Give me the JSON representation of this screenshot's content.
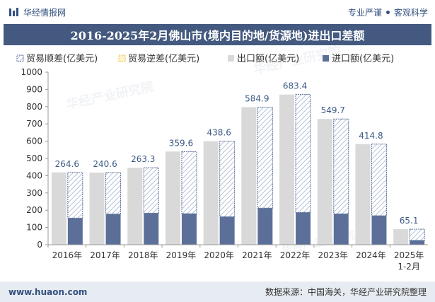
{
  "header": {
    "brand": "华经情报网",
    "tag1": "专业严谨",
    "tag2": "客观科学"
  },
  "title": "2016-2025年2月佛山市(境内目的地/货源地)进出口差额",
  "footer": {
    "site": "www.huaon.com",
    "source": "数据来源：中国海关，华经产业研究院整理"
  },
  "watermark": "华经产业研究院",
  "colors": {
    "export": "#d9d9d9",
    "import": "#5b6f99",
    "surplus_stripe": "#b4c1d8",
    "label": "#3c5a86"
  },
  "chart_data": {
    "type": "bar",
    "categories": [
      "2016年",
      "2017年",
      "2018年",
      "2019年",
      "2020年",
      "2021年",
      "2022年",
      "2023年",
      "2024年",
      "2025年\n1-2月"
    ],
    "series": [
      {
        "name": "贸易顺差(亿美元)",
        "values": [
          264.6,
          240.6,
          263.3,
          359.6,
          438.6,
          584.9,
          683.4,
          549.7,
          414.8,
          65.1
        ]
      },
      {
        "name": "贸易逆差(亿美元)",
        "values": [
          0,
          0,
          0,
          0,
          0,
          0,
          0,
          0,
          0,
          0
        ]
      },
      {
        "name": "出口额(亿美元)",
        "values": [
          419,
          418,
          446,
          540,
          600,
          797,
          870,
          729,
          583,
          90
        ]
      },
      {
        "name": "进口额(亿美元)",
        "values": [
          154,
          178,
          183,
          180,
          162,
          212,
          187,
          179,
          168,
          25
        ]
      }
    ],
    "ylim": [
      0,
      1000
    ],
    "yticks": [
      0,
      100,
      200,
      300,
      400,
      500,
      600,
      700,
      800,
      900,
      1000
    ],
    "grid": false,
    "legend": "top-left"
  }
}
